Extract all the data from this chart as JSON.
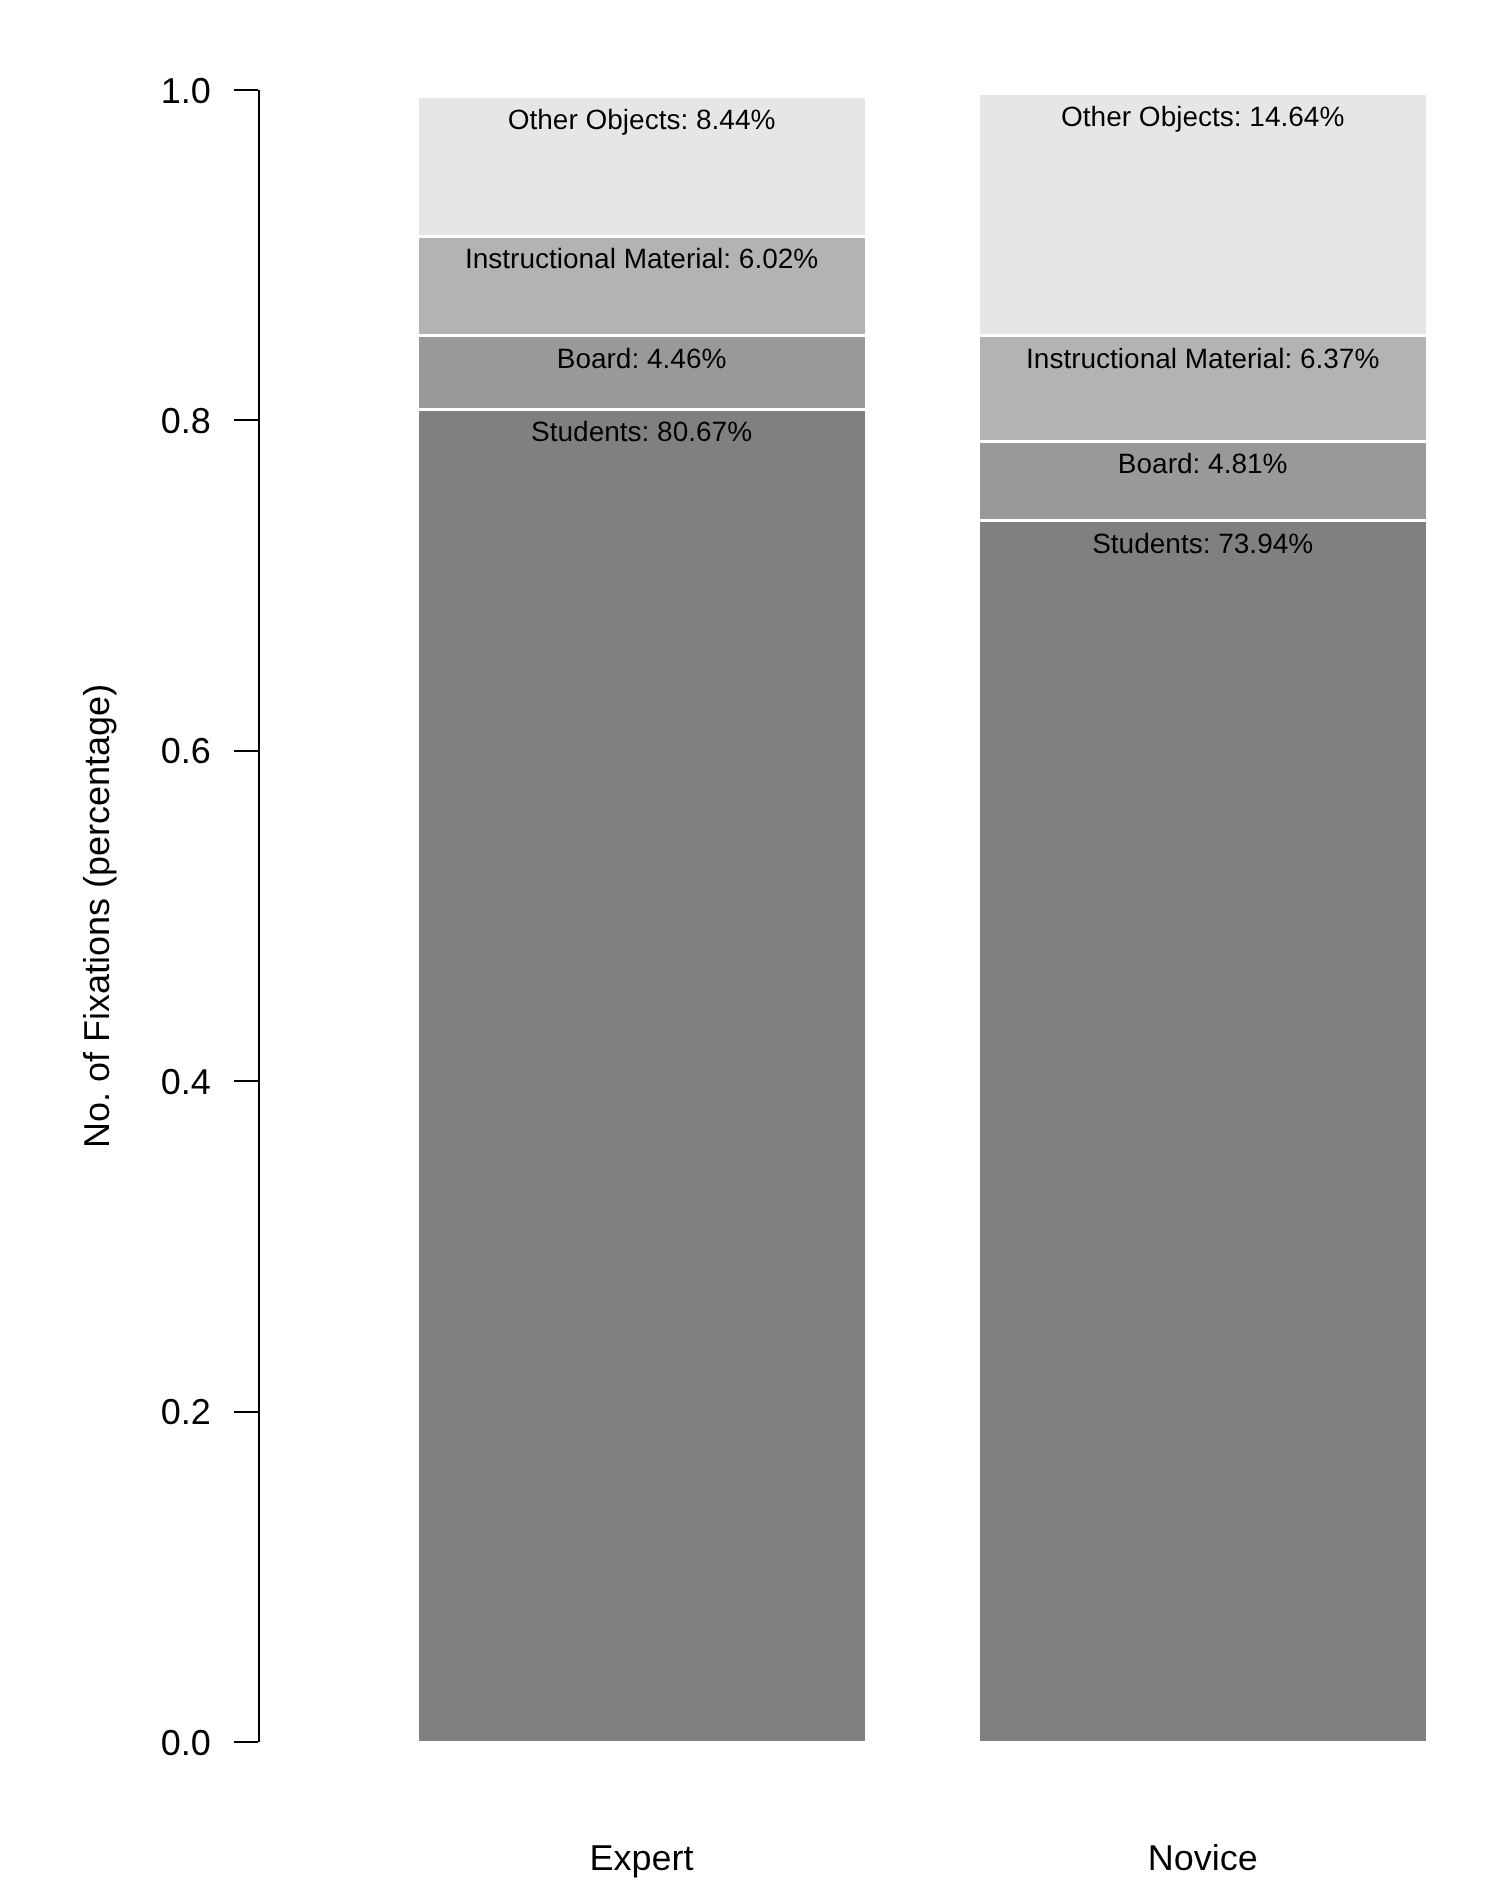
{
  "chart_data": {
    "type": "bar",
    "stacked": true,
    "ylabel": "No. of Fixations (percentage)",
    "categories": [
      "Expert",
      "Novice"
    ],
    "series": [
      {
        "color": "#808080",
        "values": [
          0.8067,
          0.7394
        ],
        "value_labels": [
          "Students: 80.67%",
          "Students: 73.94%"
        ]
      },
      {
        "color": "#999999",
        "values": [
          0.0446,
          0.0481
        ],
        "value_labels": [
          "Board: 4.46%",
          "Board: 4.81%"
        ]
      },
      {
        "color": "#b3b3b3",
        "values": [
          0.0602,
          0.0637
        ],
        "value_labels": [
          "Instructional Material: 6.02%",
          "Instructional Material: 6.37%"
        ]
      },
      {
        "color": "#e6e6e6",
        "values": [
          0.0844,
          0.1464
        ],
        "value_labels": [
          "Other Objects: 8.44%",
          "Other Objects: 14.64%"
        ]
      }
    ],
    "ylim": [
      0,
      1
    ],
    "yticks": [
      {
        "value": 0,
        "label": "0.0"
      },
      0.2,
      0.4,
      0.6,
      0.8,
      {
        "value": 1,
        "label": "1.0"
      }
    ],
    "grid": false,
    "legend": false
  }
}
